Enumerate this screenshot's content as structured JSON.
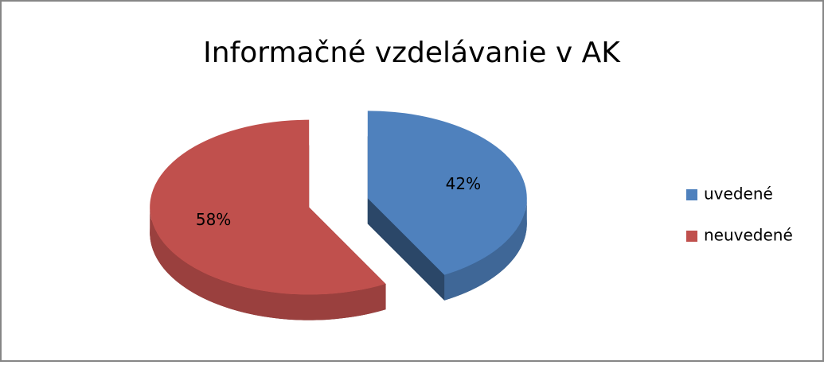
{
  "chart_data": {
    "type": "pie",
    "title": "Informačné vzdelávanie v AK",
    "categories": [
      "uvedené",
      "neuvedené"
    ],
    "values": [
      42,
      58
    ],
    "value_labels": [
      "42%",
      "58%"
    ],
    "colors": [
      "#4f81bd",
      "#c0504d"
    ],
    "legend": "right"
  }
}
